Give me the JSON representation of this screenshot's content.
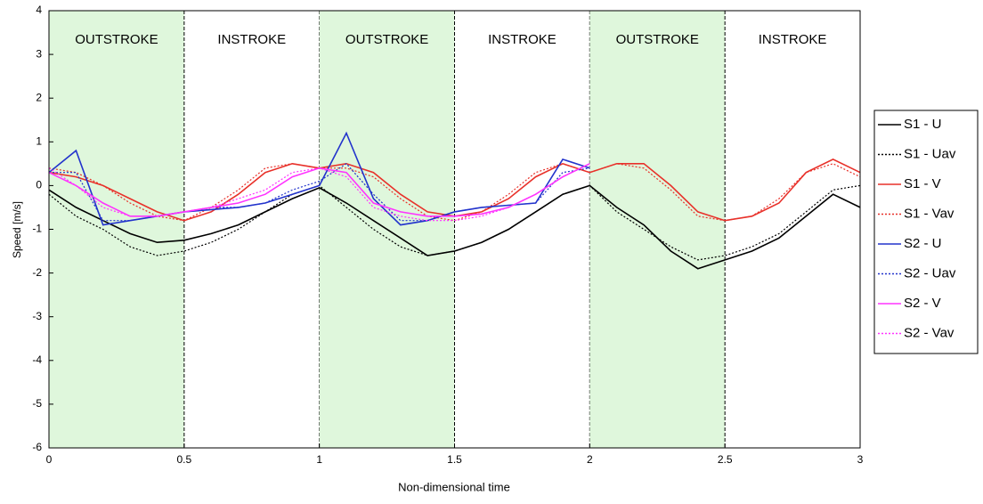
{
  "chart_data": {
    "type": "line",
    "xlabel": "Non-dimensional time",
    "ylabel": "Speed [m/s]",
    "xlim": [
      0,
      3
    ],
    "ylim": [
      -6,
      4
    ],
    "xticks": [
      0,
      0.5,
      1,
      1.5,
      2,
      2.5,
      3
    ],
    "yticks": [
      -6,
      -5,
      -4,
      -3,
      -2,
      -1,
      0,
      1,
      2,
      3,
      4
    ],
    "phases": [
      {
        "label": "OUTSTROKE",
        "start": 0,
        "end": 0.5,
        "shaded": true,
        "color": "#dff7dc"
      },
      {
        "label": "INSTROKE",
        "start": 0.5,
        "end": 1,
        "shaded": false,
        "color": "#ffffff"
      },
      {
        "label": "OUTSTROKE",
        "start": 1,
        "end": 1.5,
        "shaded": true,
        "color": "#dff7dc"
      },
      {
        "label": "INSTROKE",
        "start": 1.5,
        "end": 2,
        "shaded": false,
        "color": "#ffffff"
      },
      {
        "label": "OUTSTROKE",
        "start": 2,
        "end": 2.5,
        "shaded": true,
        "color": "#dff7dc"
      },
      {
        "label": "INSTROKE",
        "start": 2.5,
        "end": 3,
        "shaded": false,
        "color": "#ffffff"
      }
    ],
    "x": [
      0,
      0.1,
      0.2,
      0.3,
      0.4,
      0.5,
      0.6,
      0.7,
      0.8,
      0.9,
      1,
      1.1,
      1.2,
      1.3,
      1.4,
      1.5,
      1.6,
      1.7,
      1.8,
      1.9,
      2,
      2.1,
      2.2,
      2.3,
      2.4,
      2.5,
      2.6,
      2.7,
      2.8,
      2.9,
      3
    ],
    "legend": "right",
    "series": [
      {
        "name": "S1 - U",
        "color": "#000000",
        "style": "solid",
        "values": [
          -0.1,
          -0.5,
          -0.8,
          -1.1,
          -1.3,
          -1.25,
          -1.1,
          -0.9,
          -0.6,
          -0.3,
          -0.05,
          -0.4,
          -0.8,
          -1.2,
          -1.6,
          -1.5,
          -1.3,
          -1.0,
          -0.6,
          -0.2,
          0.0,
          -0.5,
          -0.9,
          -1.5,
          -1.9,
          -1.7,
          -1.5,
          -1.2,
          -0.7,
          -0.2,
          -0.5
        ]
      },
      {
        "name": "S1 - Uav",
        "color": "#000000",
        "style": "dotted",
        "values": [
          -0.2,
          -0.7,
          -1.0,
          -1.4,
          -1.6,
          -1.5,
          -1.3,
          -1.0,
          -0.6,
          -0.2,
          0.0,
          -0.5,
          -1.0,
          -1.4,
          -1.6,
          -1.5,
          -1.3,
          -1.0,
          -0.6,
          -0.2,
          0.0,
          -0.6,
          -1.0,
          -1.4,
          -1.7,
          -1.6,
          -1.4,
          -1.1,
          -0.6,
          -0.1,
          0.0
        ]
      },
      {
        "name": "S1 - V",
        "color": "#e8312a",
        "style": "solid",
        "values": [
          0.3,
          0.2,
          0.0,
          -0.3,
          -0.6,
          -0.8,
          -0.6,
          -0.2,
          0.3,
          0.5,
          0.4,
          0.5,
          0.3,
          -0.2,
          -0.6,
          -0.7,
          -0.6,
          -0.3,
          0.2,
          0.5,
          0.3,
          0.5,
          0.5,
          0.0,
          -0.6,
          -0.8,
          -0.7,
          -0.4,
          0.3,
          0.6,
          0.3
        ]
      },
      {
        "name": "S1 - Vav",
        "color": "#e8312a",
        "style": "dotted",
        "values": [
          0.4,
          0.3,
          0.0,
          -0.4,
          -0.7,
          -0.8,
          -0.5,
          -0.1,
          0.4,
          0.5,
          0.4,
          0.4,
          0.2,
          -0.3,
          -0.7,
          -0.8,
          -0.6,
          -0.2,
          0.3,
          0.5,
          0.3,
          0.5,
          0.4,
          -0.1,
          -0.7,
          -0.8,
          -0.7,
          -0.3,
          0.3,
          0.5,
          0.2
        ]
      },
      {
        "name": "S2 - U",
        "color": "#2233cc",
        "style": "solid",
        "values": [
          0.3,
          0.8,
          -0.9,
          -0.8,
          -0.7,
          -0.6,
          -0.55,
          -0.5,
          -0.4,
          -0.2,
          0.0,
          1.2,
          -0.3,
          -0.9,
          -0.8,
          -0.6,
          -0.5,
          -0.45,
          -0.4,
          0.6,
          0.4,
          null,
          null,
          null,
          null,
          null,
          null,
          null,
          null,
          null,
          null
        ]
      },
      {
        "name": "S2 - Uav",
        "color": "#2233cc",
        "style": "dotted",
        "values": [
          0.3,
          0.3,
          -0.8,
          -0.8,
          -0.7,
          -0.6,
          -0.5,
          -0.5,
          -0.4,
          -0.1,
          0.1,
          0.5,
          -0.2,
          -0.8,
          -0.8,
          -0.6,
          -0.5,
          -0.45,
          -0.4,
          0.3,
          0.4,
          null,
          null,
          null,
          null,
          null,
          null,
          null,
          null,
          null,
          null
        ]
      },
      {
        "name": "S2 - V",
        "color": "#ff33ff",
        "style": "solid",
        "values": [
          0.3,
          0.0,
          -0.4,
          -0.7,
          -0.7,
          -0.6,
          -0.5,
          -0.4,
          -0.2,
          0.2,
          0.4,
          0.3,
          -0.4,
          -0.6,
          -0.7,
          -0.7,
          -0.65,
          -0.5,
          -0.2,
          0.2,
          0.5,
          null,
          null,
          null,
          null,
          null,
          null,
          null,
          null,
          null,
          null
        ]
      },
      {
        "name": "S2 - Vav",
        "color": "#ff33ff",
        "style": "dotted",
        "values": [
          0.4,
          0.0,
          -0.5,
          -0.7,
          -0.7,
          -0.6,
          -0.5,
          -0.3,
          -0.1,
          0.3,
          0.4,
          0.2,
          -0.5,
          -0.7,
          -0.8,
          -0.8,
          -0.7,
          -0.5,
          -0.2,
          0.2,
          0.5,
          null,
          null,
          null,
          null,
          null,
          null,
          null,
          null,
          null,
          null
        ]
      }
    ]
  }
}
